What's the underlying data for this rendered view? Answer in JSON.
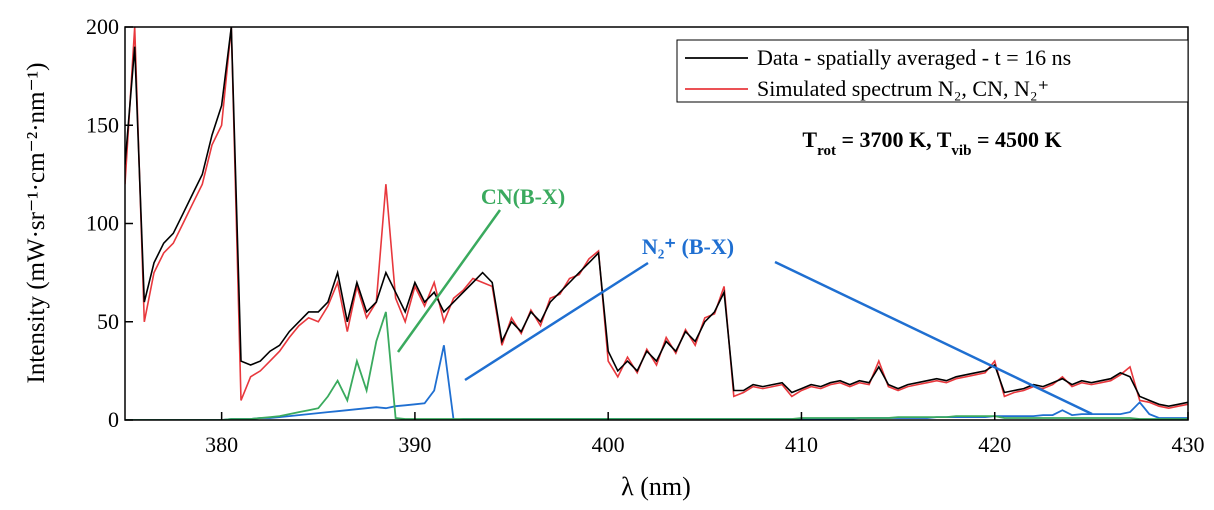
{
  "chart_data": {
    "type": "line",
    "x_label": "λ (nm)",
    "y_label": "Intensity (mW·sr⁻¹·cm⁻²·nm⁻¹)",
    "xlim": [
      375,
      430
    ],
    "xticks": [
      380,
      390,
      400,
      410,
      420,
      430
    ],
    "ylim": [
      0,
      200
    ],
    "yticks": [
      0,
      50,
      100,
      150,
      200
    ],
    "x": [
      375,
      375.5,
      376,
      376.5,
      377,
      377.5,
      378,
      378.5,
      379,
      379.5,
      380,
      380.5,
      381,
      381.5,
      382,
      382.5,
      383,
      383.5,
      384,
      384.5,
      385,
      385.5,
      386,
      386.5,
      387,
      387.5,
      388,
      388.5,
      389,
      389.5,
      390,
      390.5,
      391,
      391.5,
      392,
      392.5,
      393,
      393.5,
      394,
      394.5,
      395,
      395.5,
      396,
      396.5,
      397,
      397.5,
      398,
      398.5,
      399,
      399.5,
      400,
      400.5,
      401,
      401.5,
      402,
      402.5,
      403,
      403.5,
      404,
      404.5,
      405,
      405.5,
      406,
      406.5,
      407,
      407.5,
      408,
      408.5,
      409,
      409.5,
      410,
      410.5,
      411,
      411.5,
      412,
      412.5,
      413,
      413.5,
      414,
      414.5,
      415,
      415.5,
      416,
      416.5,
      417,
      417.5,
      418,
      418.5,
      419,
      419.5,
      420,
      420.5,
      421,
      421.5,
      422,
      422.5,
      423,
      423.5,
      424,
      424.5,
      425,
      425.5,
      426,
      426.5,
      427,
      427.5,
      428,
      428.5,
      429,
      429.5,
      430
    ],
    "series": [
      {
        "name": "Data - spatially averaged - t = 16 ns",
        "color": "#000000",
        "values": [
          130,
          190,
          60,
          80,
          90,
          95,
          105,
          115,
          125,
          145,
          160,
          200,
          30,
          28,
          30,
          35,
          38,
          45,
          50,
          55,
          55,
          60,
          75,
          50,
          70,
          55,
          60,
          75,
          65,
          55,
          70,
          60,
          65,
          55,
          60,
          65,
          70,
          75,
          70,
          40,
          50,
          45,
          55,
          50,
          60,
          65,
          70,
          75,
          80,
          85,
          35,
          25,
          30,
          25,
          35,
          30,
          40,
          35,
          45,
          40,
          50,
          55,
          65,
          15,
          15,
          18,
          17,
          18,
          19,
          14,
          16,
          18,
          17,
          19,
          20,
          18,
          20,
          19,
          27,
          18,
          16,
          18,
          19,
          20,
          21,
          20,
          22,
          23,
          24,
          25,
          28,
          14,
          15,
          16,
          18,
          17,
          19,
          21,
          18,
          20,
          19,
          20,
          21,
          24,
          22,
          12,
          10,
          8,
          7,
          8,
          9
        ]
      },
      {
        "name": "Simulated spectrum N₂, CN, N₂⁺",
        "color": "#e8383d",
        "values": [
          120,
          200,
          50,
          75,
          85,
          90,
          100,
          110,
          120,
          140,
          150,
          200,
          10,
          22,
          25,
          30,
          35,
          42,
          48,
          52,
          50,
          58,
          70,
          45,
          68,
          52,
          60,
          120,
          62,
          50,
          68,
          58,
          70,
          50,
          62,
          66,
          72,
          70,
          68,
          38,
          52,
          44,
          56,
          48,
          62,
          64,
          72,
          74,
          82,
          86,
          30,
          22,
          32,
          24,
          36,
          28,
          42,
          34,
          46,
          38,
          52,
          54,
          68,
          12,
          14,
          17,
          16,
          17,
          18,
          12,
          15,
          17,
          16,
          18,
          19,
          17,
          19,
          18,
          30,
          17,
          15,
          17,
          18,
          19,
          20,
          19,
          21,
          22,
          23,
          24,
          30,
          12,
          14,
          15,
          17,
          16,
          18,
          22,
          17,
          19,
          18,
          19,
          20,
          23,
          27,
          10,
          9,
          7,
          6,
          7,
          8
        ]
      },
      {
        "name": "CN(B-X)",
        "color": "#3aaa5e",
        "values": [
          0,
          0,
          0,
          0,
          0,
          0,
          0,
          0,
          0,
          0,
          0,
          0.5,
          0.5,
          0.5,
          1,
          1.5,
          2,
          3,
          4,
          5,
          6,
          12,
          20,
          10,
          30,
          15,
          40,
          55,
          1,
          0.5,
          0.5,
          0.5,
          0.5,
          0.5,
          0.5,
          0.5,
          0.5,
          0.5,
          0.5,
          0.5,
          0.5,
          0.5,
          0.5,
          0.5,
          0.5,
          0.5,
          0.5,
          0.5,
          0.5,
          0.5,
          0.5,
          0.5,
          0.5,
          0.5,
          0.5,
          0.5,
          0.5,
          0.5,
          0.5,
          0.5,
          0.5,
          0.5,
          0.5,
          0.5,
          0.5,
          0.5,
          0.5,
          0.5,
          0.5,
          0.5,
          1,
          1,
          1,
          1,
          1,
          1,
          1,
          1,
          1,
          1,
          1.5,
          1.5,
          1.5,
          1.5,
          1.5,
          1.5,
          2,
          2,
          2,
          2,
          2,
          1,
          1,
          1,
          1,
          1,
          1,
          1,
          1,
          1,
          1,
          1,
          1,
          1,
          1,
          0.5,
          0.5,
          0.5,
          0.5,
          0.5,
          0.5
        ]
      },
      {
        "name": "N₂⁺ (B-X)",
        "color": "#1f6fd1",
        "values": [
          0,
          0,
          0,
          0,
          0,
          0,
          0,
          0,
          0,
          0,
          0,
          0.5,
          0.5,
          0.5,
          1,
          1,
          1.5,
          2,
          2.5,
          3,
          3.5,
          4,
          4.5,
          5,
          5.5,
          6,
          6.5,
          6,
          7,
          7.5,
          8,
          8.5,
          15,
          38,
          0,
          0.5,
          0.5,
          0.5,
          0.5,
          0.5,
          0.5,
          0.5,
          0.5,
          0.5,
          0.5,
          0.5,
          0.5,
          0.5,
          0.5,
          0.5,
          0.5,
          0.5,
          0.5,
          0.5,
          0.5,
          0.5,
          0.5,
          0.5,
          0.5,
          0.5,
          0.5,
          0.5,
          0.5,
          0.5,
          0.5,
          0.5,
          0.5,
          0.5,
          0.5,
          0.5,
          0.5,
          0.5,
          0.5,
          0.5,
          0.5,
          0.5,
          1,
          1,
          1,
          1,
          1,
          1,
          1,
          1,
          1.5,
          1.5,
          1.5,
          1.5,
          1.5,
          1.5,
          2,
          2,
          2,
          2,
          2,
          2.5,
          2.5,
          5,
          2.5,
          3,
          3,
          3,
          3,
          3,
          4,
          9,
          3,
          1,
          1,
          1,
          1
        ]
      }
    ],
    "legend": [
      0,
      1
    ],
    "annotations": [
      {
        "text": "CN(B-X)",
        "series": 2
      },
      {
        "text": "N₂⁺ (B-X)",
        "series": 3
      }
    ],
    "temperature_label": [
      "T",
      "rot",
      " = 3700 K, T",
      "vib",
      " = 4500 K"
    ]
  }
}
